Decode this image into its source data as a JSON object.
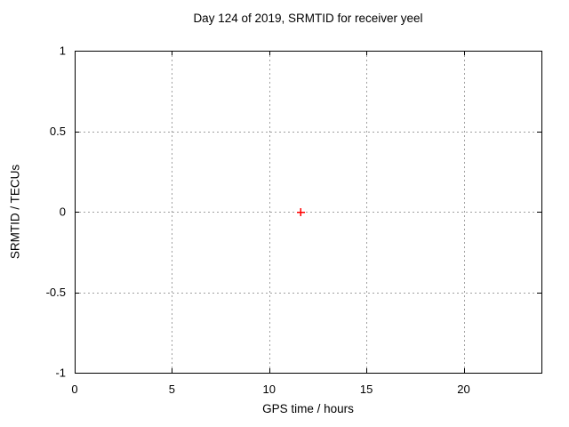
{
  "title": "Day 124 of 2019, SRMTID for receiver yeel",
  "chart_data": {
    "type": "scatter",
    "title": "Day 124 of 2019, SRMTID for receiver yeel",
    "xlabel": "GPS time / hours",
    "ylabel": "SRMTID / TECUs",
    "xlim": [
      0,
      24
    ],
    "ylim": [
      -1,
      1
    ],
    "xticks": [
      0,
      5,
      10,
      15,
      20
    ],
    "yticks": [
      -1,
      -0.5,
      0,
      0.5,
      1
    ],
    "grid": true,
    "legend": "none",
    "series": [
      {
        "name": "SRMTID",
        "marker": "plus",
        "color": "#ff0000",
        "points": [
          {
            "x": 11.6,
            "y": 0.0
          }
        ]
      }
    ],
    "colors": {
      "background": "#ffffff",
      "border": "#000000",
      "grid": "#a0a0a0",
      "text": "#000000"
    }
  }
}
